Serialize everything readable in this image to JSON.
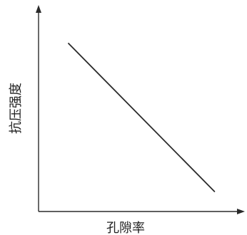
{
  "chart_data": {
    "type": "line",
    "xlabel": "孔隙率",
    "ylabel": "抗压强度",
    "x_ticks_shown": false,
    "y_ticks_shown": false,
    "grid": false,
    "xlim": [
      0,
      1
    ],
    "ylim": [
      0,
      1
    ],
    "series": [
      {
        "x": [
          0.15,
          0.88
        ],
        "y": [
          0.84,
          0.1
        ]
      }
    ],
    "colors": {
      "axis": "#2a2a2a",
      "line": "#2b2b2b",
      "text": "#222222"
    }
  }
}
